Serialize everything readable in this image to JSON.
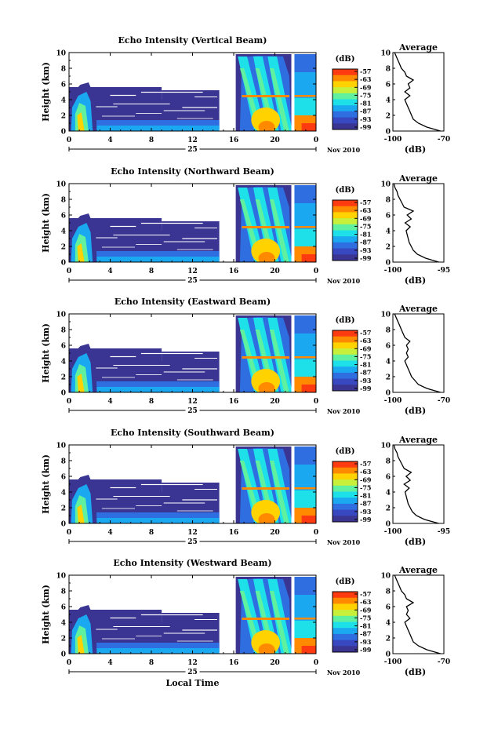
{
  "chart_data": [
    {
      "type": "heatmap",
      "title": "Echo Intensity (Vertical Beam)",
      "ylabel": "Height (km)",
      "ylim": [
        0,
        10
      ],
      "yticks": [
        "0",
        "2",
        "4",
        "6",
        "8",
        "10"
      ],
      "xlim": [
        0,
        24
      ],
      "xticks": [
        "0",
        "4",
        "8",
        "12",
        "16",
        "20",
        "0"
      ],
      "date_label": "25",
      "month_label": "Nov 2010",
      "colorbar": {
        "unit": "(dB)",
        "ticks": [
          "-57",
          "-63",
          "-69",
          "-75",
          "-81",
          "-87",
          "-93",
          "-99"
        ]
      },
      "profile": {
        "title": "Average",
        "xlabel": "(dB)",
        "xticks": [
          "-100",
          "-70"
        ],
        "xlim": [
          -100,
          -70
        ],
        "heights": [
          0,
          0.5,
          1,
          1.5,
          2,
          2.5,
          3,
          3.5,
          4,
          4.5,
          5,
          5.5,
          6,
          6.5,
          7,
          7.5,
          8,
          8.5,
          9,
          9.5,
          10
        ],
        "values": [
          -72,
          -80,
          -85,
          -88,
          -89,
          -90,
          -91,
          -92,
          -93,
          -90,
          -93,
          -90,
          -91,
          -88,
          -92,
          -93,
          -95,
          -96,
          -97,
          -98,
          -99
        ]
      }
    },
    {
      "type": "heatmap",
      "title": "Echo Intensity (Northward Beam)",
      "ylabel": "Height (km)",
      "ylim": [
        0,
        10
      ],
      "yticks": [
        "0",
        "2",
        "4",
        "6",
        "8",
        "10"
      ],
      "xlim": [
        0,
        24
      ],
      "xticks": [
        "0",
        "4",
        "8",
        "12",
        "16",
        "20",
        "0"
      ],
      "date_label": "25",
      "month_label": "Nov 2010",
      "colorbar": {
        "unit": "(dB)",
        "ticks": [
          "-57",
          "-63",
          "-69",
          "-75",
          "-81",
          "-87",
          "-93",
          "-99"
        ]
      },
      "profile": {
        "title": "Average",
        "xlabel": "(dB)",
        "xticks": [
          "-100",
          "-95"
        ],
        "xlim": [
          -100,
          -95
        ],
        "heights": [
          0,
          0.5,
          1,
          1.5,
          2,
          2.5,
          3,
          3.5,
          4,
          4.5,
          5,
          5.5,
          6,
          6.5,
          7,
          7.5,
          8,
          8.5,
          9,
          9.5,
          10
        ],
        "values": [
          -95.5,
          -96.8,
          -97.6,
          -98.0,
          -98.2,
          -98.4,
          -98.5,
          -98.6,
          -98.7,
          -98.3,
          -98.8,
          -98.2,
          -98.6,
          -98.0,
          -98.9,
          -99.1,
          -99.3,
          -99.5,
          -99.6,
          -99.8,
          -99.9
        ]
      }
    },
    {
      "type": "heatmap",
      "title": "Echo Intensity (Eastward Beam)",
      "ylabel": "Height (km)",
      "ylim": [
        0,
        10
      ],
      "yticks": [
        "0",
        "2",
        "4",
        "6",
        "8",
        "10"
      ],
      "xlim": [
        0,
        24
      ],
      "xticks": [
        "0",
        "4",
        "8",
        "12",
        "16",
        "20",
        "0"
      ],
      "date_label": "25",
      "month_label": "Nov 2010",
      "colorbar": {
        "unit": "(dB)",
        "ticks": [
          "-57",
          "-63",
          "-69",
          "-75",
          "-81",
          "-87",
          "-93",
          "-99"
        ]
      },
      "profile": {
        "title": "Average",
        "xlabel": "(dB)",
        "xticks": [
          "-100",
          "-70"
        ],
        "xlim": [
          -100,
          -70
        ],
        "heights": [
          0,
          0.5,
          1,
          1.5,
          2,
          2.5,
          3,
          3.5,
          4,
          4.5,
          5,
          5.5,
          6,
          6.5,
          7,
          7.5,
          8,
          8.5,
          9,
          9.5,
          10
        ],
        "values": [
          -72,
          -80,
          -85,
          -87,
          -89,
          -90,
          -91,
          -92,
          -93,
          -91,
          -92,
          -91,
          -92,
          -90,
          -93,
          -94,
          -95,
          -96,
          -97,
          -98,
          -99
        ]
      }
    },
    {
      "type": "heatmap",
      "title": "Echo Intensity (Southward Beam)",
      "ylabel": "Height (km)",
      "ylim": [
        0,
        10
      ],
      "yticks": [
        "0",
        "2",
        "4",
        "6",
        "8",
        "10"
      ],
      "xlim": [
        0,
        24
      ],
      "xticks": [
        "0",
        "4",
        "8",
        "12",
        "16",
        "20",
        "0"
      ],
      "date_label": "25",
      "month_label": "Nov 2010",
      "colorbar": {
        "unit": "(dB)",
        "ticks": [
          "-57",
          "-63",
          "-69",
          "-75",
          "-81",
          "-87",
          "-93",
          "-99"
        ]
      },
      "profile": {
        "title": "Average",
        "xlabel": "(dB)",
        "xticks": [
          "-100",
          "-95"
        ],
        "xlim": [
          -100,
          -95
        ],
        "heights": [
          0,
          0.5,
          1,
          1.5,
          2,
          2.5,
          3,
          3.5,
          4,
          4.5,
          5,
          5.5,
          6,
          6.5,
          7,
          7.5,
          8,
          8.5,
          9,
          9.5,
          10
        ],
        "values": [
          -95.5,
          -96.9,
          -97.7,
          -98.1,
          -98.3,
          -98.5,
          -98.6,
          -98.7,
          -98.8,
          -98.4,
          -98.9,
          -98.3,
          -98.7,
          -98.2,
          -98.9,
          -99.1,
          -99.3,
          -99.5,
          -99.6,
          -99.8,
          -99.9
        ]
      }
    },
    {
      "type": "heatmap",
      "title": "Echo Intensity (Westward Beam)",
      "ylabel": "Height (km)",
      "xlabel": "Local Time",
      "ylim": [
        0,
        10
      ],
      "yticks": [
        "0",
        "2",
        "4",
        "6",
        "8",
        "10"
      ],
      "xlim": [
        0,
        24
      ],
      "xticks": [
        "0",
        "4",
        "8",
        "12",
        "16",
        "20",
        "0"
      ],
      "date_label": "25",
      "month_label": "Nov 2010",
      "colorbar": {
        "unit": "(dB)",
        "ticks": [
          "-57",
          "-63",
          "-69",
          "-75",
          "-81",
          "-87",
          "-93",
          "-99"
        ]
      },
      "profile": {
        "title": "Average",
        "xlabel": "(dB)",
        "xticks": [
          "-100",
          "-70"
        ],
        "xlim": [
          -100,
          -70
        ],
        "heights": [
          0,
          0.5,
          1,
          1.5,
          2,
          2.5,
          3,
          3.5,
          4,
          4.5,
          5,
          5.5,
          6,
          6.5,
          7,
          7.5,
          8,
          8.5,
          9,
          9.5,
          10
        ],
        "values": [
          -72,
          -80,
          -85,
          -88,
          -89,
          -90,
          -91,
          -92,
          -93,
          -90,
          -92,
          -91,
          -92,
          -88,
          -92,
          -93,
          -95,
          -96,
          -97,
          -98,
          -99
        ]
      }
    }
  ],
  "colors": {
    "scale": [
      "#fe3a10",
      "#ff8a00",
      "#ffd200",
      "#c8f03a",
      "#5ff0a0",
      "#1ee0e8",
      "#1aa8f0",
      "#2f6ee0",
      "#3848c0",
      "#3a3592"
    ]
  }
}
